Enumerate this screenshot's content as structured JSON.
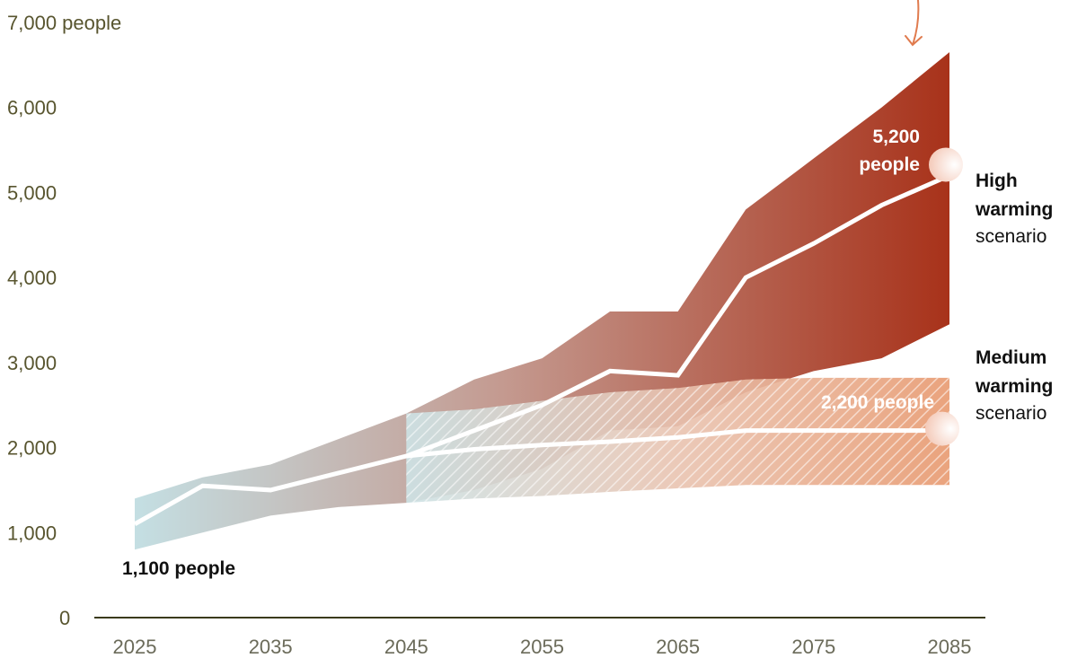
{
  "chart_data": {
    "type": "area",
    "x_ticks": [
      "2025",
      "2035",
      "2045",
      "2055",
      "2065",
      "2075",
      "2085"
    ],
    "y_ticks": [
      "0",
      "1,000",
      "2,000",
      "3,000",
      "4,000",
      "5,000",
      "6,000",
      "7,000"
    ],
    "y_unit": "people",
    "xlim": [
      2025,
      2085
    ],
    "ylim": [
      0,
      7000
    ],
    "series": [
      {
        "name": "High warming scenario",
        "median": {
          "x": [
            2025,
            2030,
            2035,
            2040,
            2045,
            2050,
            2055,
            2060,
            2065,
            2070,
            2075,
            2080,
            2085
          ],
          "y": [
            1100,
            1550,
            1500,
            1700,
            1900,
            2200,
            2500,
            2900,
            2850,
            4000,
            4400,
            4850,
            5200
          ]
        },
        "band_x": [
          2025,
          2030,
          2035,
          2040,
          2045,
          2050,
          2055,
          2060,
          2065,
          2070,
          2075,
          2080,
          2085
        ],
        "band_low": [
          800,
          1000,
          1200,
          1300,
          1350,
          1500,
          1750,
          2200,
          2250,
          2650,
          2900,
          3050,
          3450
        ],
        "band_high": [
          1400,
          1650,
          1800,
          2100,
          2400,
          2800,
          3050,
          3600,
          3600,
          4800,
          5400,
          6000,
          6650
        ],
        "end_label": "5,200 people"
      },
      {
        "name": "Medium warming scenario",
        "median": {
          "x": [
            2045,
            2050,
            2055,
            2060,
            2065,
            2070,
            2075,
            2080,
            2085
          ],
          "y": [
            1900,
            1980,
            2030,
            2070,
            2120,
            2200,
            2200,
            2200,
            2200
          ]
        },
        "band_x": [
          2045,
          2050,
          2055,
          2060,
          2065,
          2070,
          2075,
          2080,
          2085
        ],
        "band_low": [
          1350,
          1400,
          1430,
          1480,
          1520,
          1560,
          1560,
          1560,
          1560
        ],
        "band_high": [
          2400,
          2450,
          2550,
          2650,
          2700,
          2800,
          2820,
          2820,
          2820
        ],
        "end_label": "2,200 people"
      }
    ],
    "start_label": "1,100 people",
    "colors": {
      "high_start": "#c4dfe3",
      "high_end": "#a8321a",
      "medium_start": "#cde3e6",
      "medium_end": "#e8996f",
      "axis": "#3a3a1a",
      "arrow": "#e07b4e"
    }
  },
  "labels": {
    "high": {
      "line1": "High",
      "line2": "warming",
      "line3": "scenario"
    },
    "medium": {
      "line1": "Medium",
      "line2": "warming",
      "line3": "scenario"
    }
  }
}
